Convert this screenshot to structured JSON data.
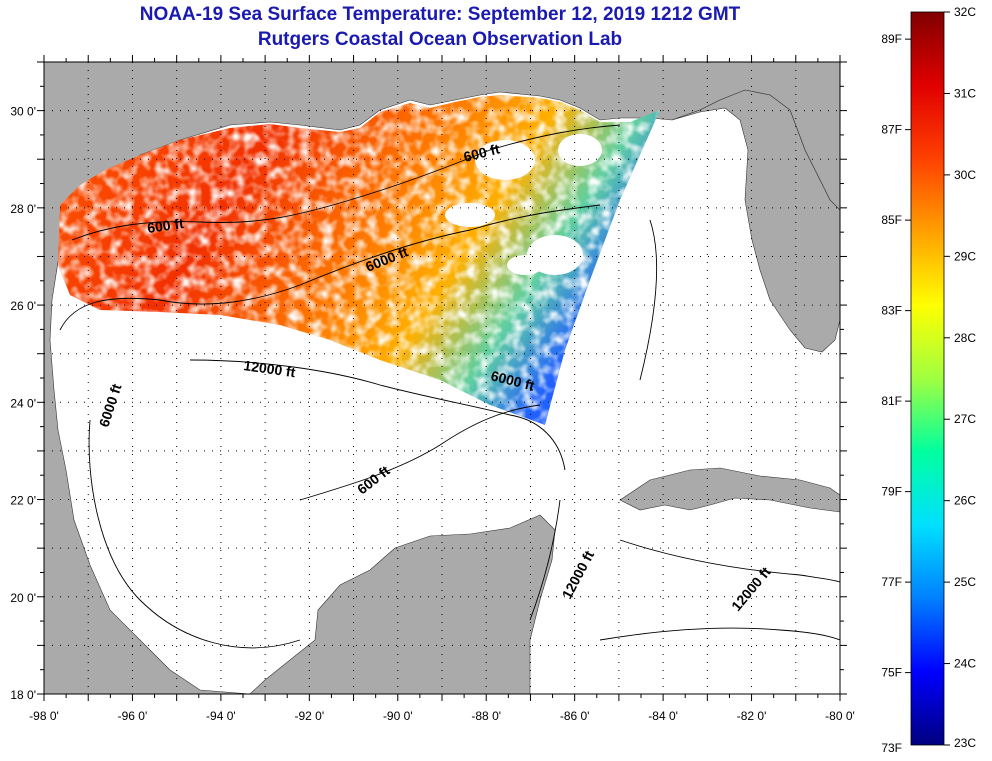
{
  "title": "NOAA-19 Sea Surface Temperature:  September 12, 2019 1212 GMT",
  "subtitle": "Rutgers Coastal Ocean Observation Lab",
  "map": {
    "lon_range": [
      -98,
      -80
    ],
    "lat_range": [
      18,
      31
    ],
    "lon_ticks": [
      "-98 0'",
      "-96 0'",
      "-94 0'",
      "-92 0'",
      "-90 0'",
      "-88 0'",
      "-86 0'",
      "-84 0'",
      "-82 0'",
      "-80 0'"
    ],
    "lat_ticks": [
      "30 0'",
      "28 0'",
      "26 0'",
      "24 0'",
      "22 0'",
      "20 0'",
      "18 0'"
    ],
    "land_color": "#aaaaaa",
    "ocean_color": "#ffffff",
    "grid": "dotted",
    "contour_labels": [
      {
        "text": "600 ft"
      },
      {
        "text": "600 ft"
      },
      {
        "text": "6000 ft"
      },
      {
        "text": "12000 ft"
      },
      {
        "text": "6000 ft"
      },
      {
        "text": "6000 ft"
      },
      {
        "text": "600 ft"
      },
      {
        "text": "12000 ft"
      },
      {
        "text": "12000 ft"
      }
    ]
  },
  "colorbar": {
    "fahrenheit": [
      "89F",
      "87F",
      "85F",
      "83F",
      "81F",
      "79F",
      "77F",
      "75F",
      "73F"
    ],
    "celsius": [
      "32C",
      "31C",
      "30C",
      "29C",
      "28C",
      "27C",
      "26C",
      "25C",
      "24C",
      "23C"
    ],
    "range_c": [
      23,
      32
    ],
    "colors": [
      "#000080",
      "#0000ff",
      "#0080ff",
      "#00e0ff",
      "#00ffa0",
      "#a0ff40",
      "#ffff00",
      "#ffa000",
      "#ff4000",
      "#e00000",
      "#800000"
    ]
  }
}
